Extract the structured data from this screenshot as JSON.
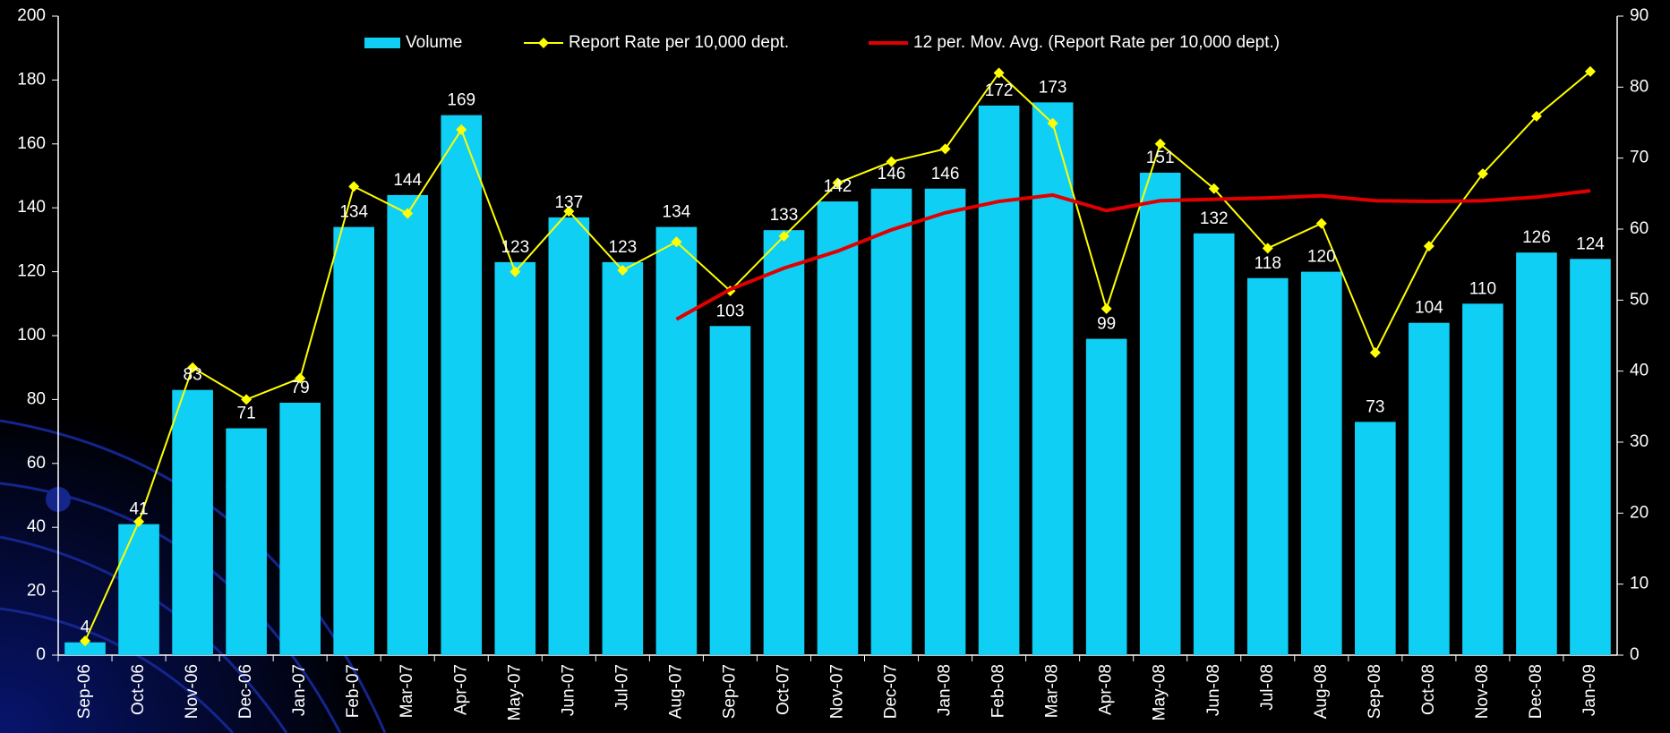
{
  "chart_data": {
    "type": "bar",
    "categories": [
      "Sep-06",
      "Oct-06",
      "Nov-06",
      "Dec-06",
      "Jan-07",
      "Feb-07",
      "Mar-07",
      "Apr-07",
      "May-07",
      "Jun-07",
      "Jul-07",
      "Aug-07",
      "Sep-07",
      "Oct-07",
      "Nov-07",
      "Dec-07",
      "Jan-08",
      "Feb-08",
      "Mar-08",
      "Apr-08",
      "May-08",
      "Jun-08",
      "Jul-08",
      "Aug-08",
      "Sep-08",
      "Oct-08",
      "Nov-08",
      "Dec-08",
      "Jan-09"
    ],
    "series": [
      {
        "name": "Volume",
        "type": "bar",
        "color": "#10cff5",
        "values": [
          4,
          41,
          83,
          71,
          79,
          134,
          144,
          169,
          123,
          137,
          123,
          134,
          103,
          133,
          142,
          146,
          146,
          172,
          173,
          99,
          151,
          132,
          118,
          120,
          73,
          104,
          110,
          126,
          124
        ]
      },
      {
        "name": "Report Rate per 10,000 dept.",
        "type": "line",
        "color": "#ffff00",
        "axis": "y2",
        "values": [
          2,
          18.8,
          40.5,
          36,
          39,
          66,
          62.2,
          74,
          54,
          62.5,
          54.2,
          58.2,
          51.3,
          59,
          66.5,
          69.5,
          71.3,
          82,
          74.9,
          48.8,
          72,
          65.7,
          57.3,
          60.8,
          42.6,
          57.6,
          67.8,
          75.9,
          82.2
        ]
      },
      {
        "name": "12 per. Mov. Avg. (Report Rate per 10,000 dept.)",
        "type": "line",
        "color": "#e00000",
        "axis": "y2",
        "values": [
          null,
          null,
          null,
          null,
          null,
          null,
          null,
          null,
          null,
          null,
          null,
          47.3,
          51.5,
          54.5,
          56.9,
          59.9,
          62.3,
          63.9,
          64.8,
          62.6,
          64,
          64.2,
          64.4,
          64.7,
          64,
          63.9,
          64,
          64.5,
          65.4
        ]
      }
    ],
    "ylim": [
      0,
      200
    ],
    "yticks": [
      0,
      20,
      40,
      60,
      80,
      100,
      120,
      140,
      160,
      180,
      200
    ],
    "y2lim": [
      0,
      90
    ],
    "y2ticks": [
      0,
      10,
      20,
      30,
      40,
      50,
      60,
      70,
      80,
      90
    ],
    "grid": false,
    "legend": "top"
  }
}
